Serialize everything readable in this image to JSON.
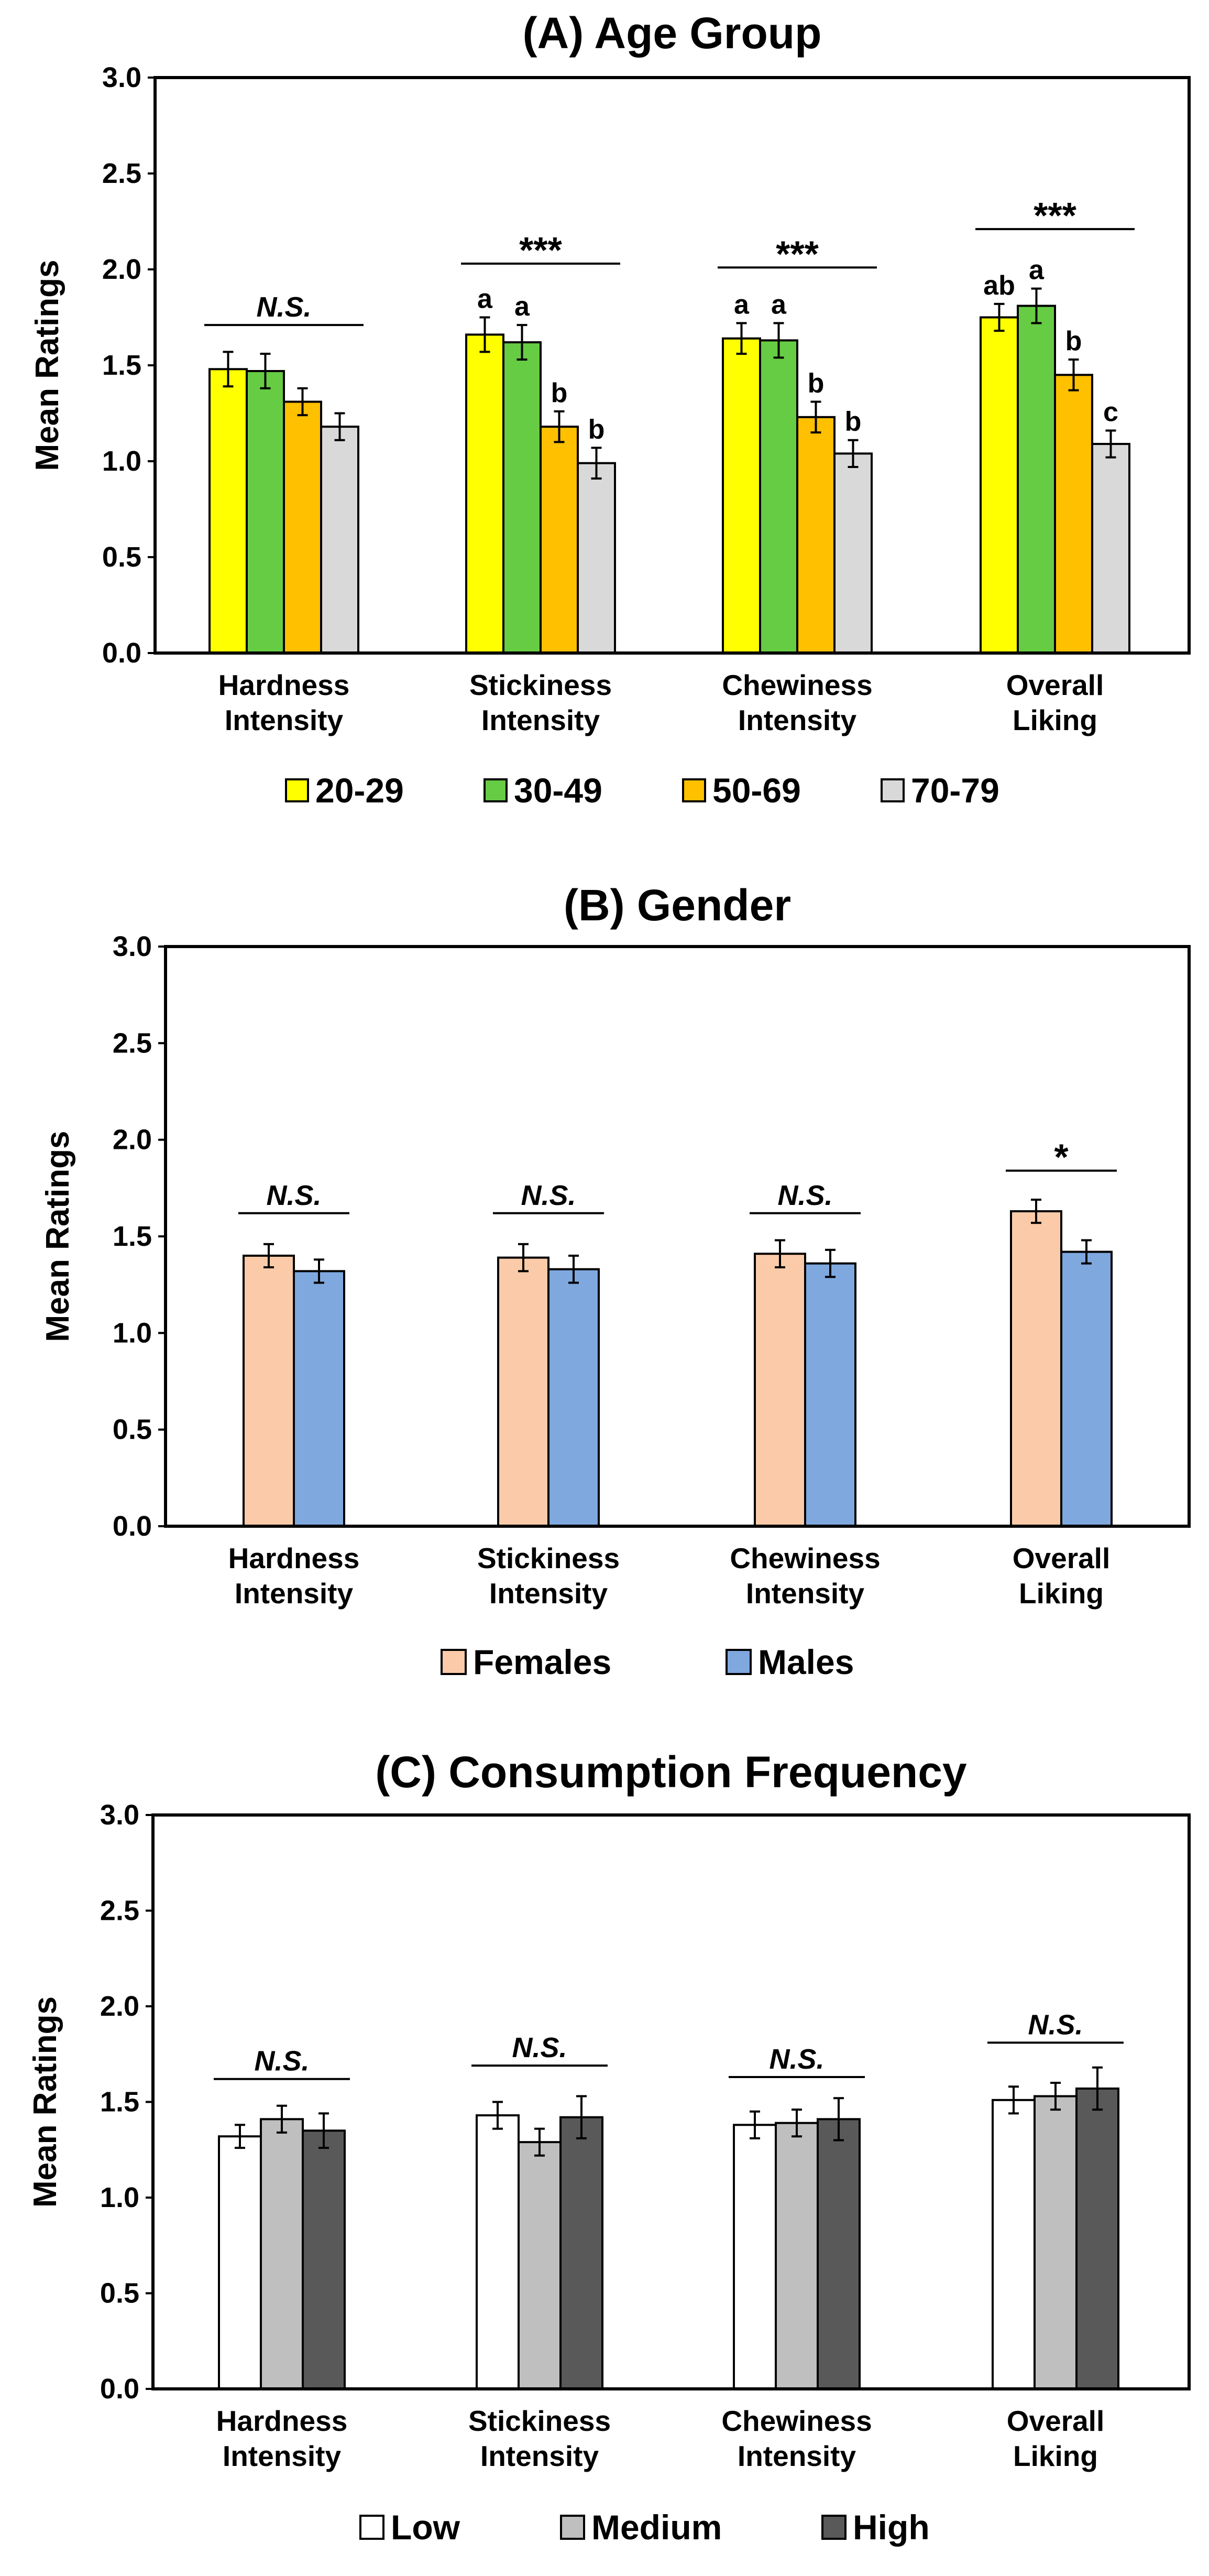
{
  "chart_data": [
    {
      "type": "bar",
      "title": "(A) Age Group",
      "xlabel": "",
      "ylabel": "Mean Ratings",
      "ylim": [
        0,
        3.0
      ],
      "yticks": [
        "0.0",
        "0.5",
        "1.0",
        "1.5",
        "2.0",
        "2.5",
        "3.0"
      ],
      "categories": [
        [
          "Hardness",
          "Intensity"
        ],
        [
          "Stickiness",
          "Intensity"
        ],
        [
          "Chewiness",
          "Intensity"
        ],
        [
          "Overall",
          "Liking"
        ]
      ],
      "series": [
        {
          "name": "20-29",
          "color": "#FFFF00",
          "values": [
            1.48,
            1.66,
            1.64,
            1.75
          ],
          "errors": [
            0.09,
            0.09,
            0.08,
            0.07
          ],
          "letters": [
            "",
            "a",
            "a",
            "ab"
          ]
        },
        {
          "name": "30-49",
          "color": "#66CC44",
          "values": [
            1.47,
            1.62,
            1.63,
            1.81
          ],
          "errors": [
            0.09,
            0.09,
            0.09,
            0.09
          ],
          "letters": [
            "",
            "a",
            "a",
            "a"
          ]
        },
        {
          "name": "50-69",
          "color": "#FFC000",
          "values": [
            1.31,
            1.18,
            1.23,
            1.45
          ],
          "errors": [
            0.07,
            0.08,
            0.08,
            0.08
          ],
          "letters": [
            "",
            "b",
            "b",
            "b"
          ]
        },
        {
          "name": "70-79",
          "color": "#D9D9D9",
          "values": [
            1.18,
            0.99,
            1.04,
            1.09
          ],
          "errors": [
            0.07,
            0.08,
            0.07,
            0.07
          ],
          "letters": [
            "",
            "b",
            "b",
            "c"
          ]
        }
      ],
      "significance": [
        {
          "label": "N.S.",
          "y": 1.71,
          "style": "ns"
        },
        {
          "label": "***",
          "y": 2.03,
          "style": "stars"
        },
        {
          "label": "***",
          "y": 2.01,
          "style": "stars"
        },
        {
          "label": "***",
          "y": 2.21,
          "style": "stars"
        }
      ]
    },
    {
      "type": "bar",
      "title": "(B) Gender",
      "xlabel": "",
      "ylabel": "Mean Ratings",
      "ylim": [
        0,
        3.0
      ],
      "yticks": [
        "0.0",
        "0.5",
        "1.0",
        "1.5",
        "2.0",
        "2.5",
        "3.0"
      ],
      "categories": [
        [
          "Hardness",
          "Intensity"
        ],
        [
          "Stickiness",
          "Intensity"
        ],
        [
          "Chewiness",
          "Intensity"
        ],
        [
          "Overall",
          "Liking"
        ]
      ],
      "series": [
        {
          "name": "Females",
          "color": "#FBCBA9",
          "values": [
            1.4,
            1.39,
            1.41,
            1.63
          ],
          "errors": [
            0.06,
            0.07,
            0.07,
            0.06
          ],
          "letters": [
            "",
            "",
            "",
            ""
          ]
        },
        {
          "name": "Males",
          "color": "#7FA8DF",
          "values": [
            1.32,
            1.33,
            1.36,
            1.42
          ],
          "errors": [
            0.06,
            0.07,
            0.07,
            0.06
          ],
          "letters": [
            "",
            "",
            "",
            ""
          ]
        }
      ],
      "significance": [
        {
          "label": "N.S.",
          "y": 1.62,
          "style": "ns"
        },
        {
          "label": "N.S.",
          "y": 1.62,
          "style": "ns"
        },
        {
          "label": "N.S.",
          "y": 1.62,
          "style": "ns"
        },
        {
          "label": "*",
          "y": 1.84,
          "style": "stars"
        }
      ]
    },
    {
      "type": "bar",
      "title": "(C) Consumption Frequency",
      "xlabel": "",
      "ylabel": "Mean Ratings",
      "ylim": [
        0,
        3.0
      ],
      "yticks": [
        "0.0",
        "0.5",
        "1.0",
        "1.5",
        "2.0",
        "2.5",
        "3.0"
      ],
      "categories": [
        [
          "Hardness",
          "Intensity"
        ],
        [
          "Stickiness",
          "Intensity"
        ],
        [
          "Chewiness",
          "Intensity"
        ],
        [
          "Overall",
          "Liking"
        ]
      ],
      "series": [
        {
          "name": "Low",
          "color": "#FFFFFF",
          "values": [
            1.32,
            1.43,
            1.38,
            1.51
          ],
          "errors": [
            0.06,
            0.07,
            0.07,
            0.07
          ],
          "letters": [
            "",
            "",
            "",
            ""
          ]
        },
        {
          "name": "Medium",
          "color": "#BFBFBF",
          "values": [
            1.41,
            1.29,
            1.39,
            1.53
          ],
          "errors": [
            0.07,
            0.07,
            0.07,
            0.07
          ],
          "letters": [
            "",
            "",
            "",
            ""
          ]
        },
        {
          "name": "High",
          "color": "#595959",
          "values": [
            1.35,
            1.42,
            1.41,
            1.57
          ],
          "errors": [
            0.09,
            0.11,
            0.11,
            0.11
          ],
          "letters": [
            "",
            "",
            "",
            ""
          ]
        }
      ],
      "significance": [
        {
          "label": "N.S.",
          "y": 1.62,
          "style": "ns"
        },
        {
          "label": "N.S.",
          "y": 1.69,
          "style": "ns"
        },
        {
          "label": "N.S.",
          "y": 1.63,
          "style": "ns"
        },
        {
          "label": "N.S.",
          "y": 1.81,
          "style": "ns"
        }
      ]
    }
  ]
}
